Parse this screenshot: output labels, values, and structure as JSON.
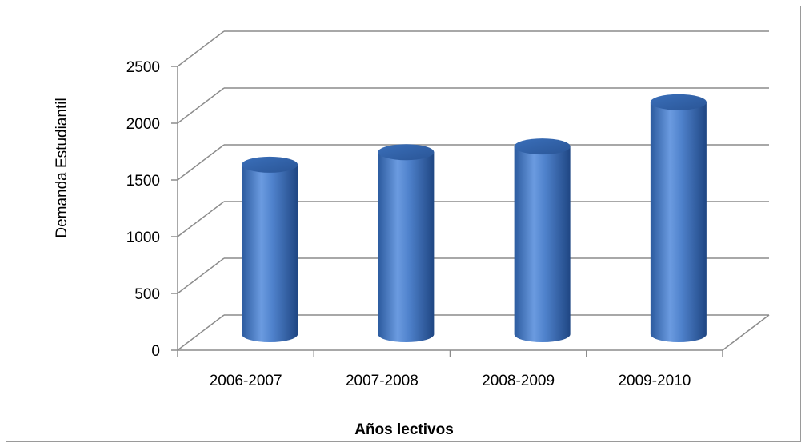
{
  "chart_data": {
    "type": "bar",
    "style": "3d-cylinder",
    "categories": [
      "2006-2007",
      "2007-2008",
      "2008-2009",
      "2009-2010"
    ],
    "series": [
      {
        "values": [
          1480,
          1590,
          1640,
          2030
        ],
        "color": "#4a7cc4"
      }
    ],
    "title": "",
    "xlabel": "Años lectivos",
    "ylabel": "Demanda  Estudiantil",
    "ylim": [
      0,
      2500
    ],
    "yticks": [
      0,
      500,
      1000,
      1500,
      2000,
      2500
    ],
    "grid": true,
    "legend": "none"
  }
}
